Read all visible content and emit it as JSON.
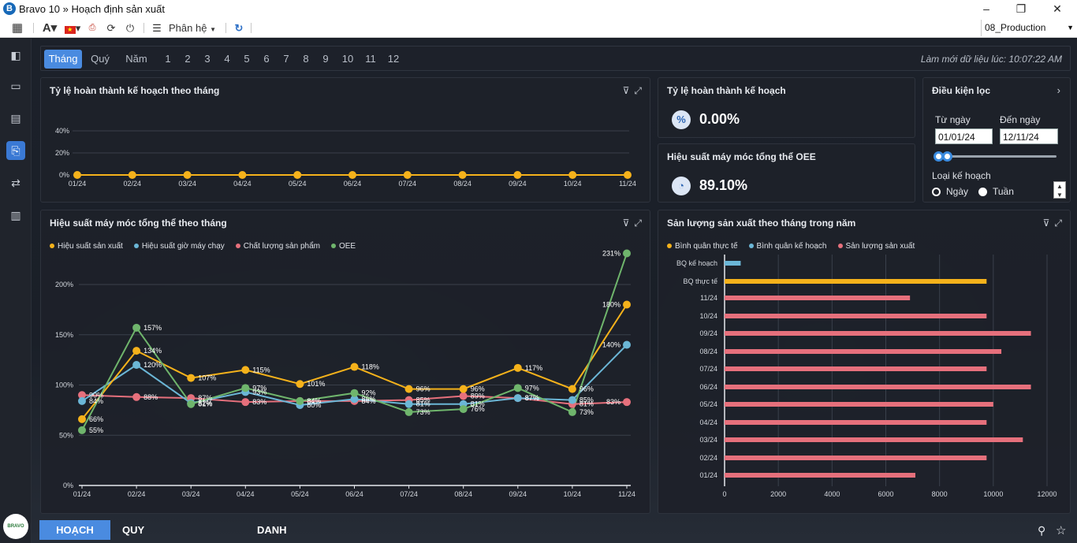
{
  "window": {
    "title": "Bravo 10 » Hoạch định sản xuất"
  },
  "toolbar": {
    "phan_he_label": "Phân hệ",
    "database": "08_Production"
  },
  "period_bar": {
    "tabs": [
      "Tháng",
      "Quý",
      "Năm"
    ],
    "months": [
      "1",
      "2",
      "3",
      "4",
      "5",
      "6",
      "7",
      "8",
      "9",
      "10",
      "11",
      "12"
    ],
    "refresh_text": "Làm mới dữ liệu lúc: 10:07:22 AM"
  },
  "panels": {
    "plan_rate_title": "Tỷ lệ hoàn thành kế hoạch theo tháng",
    "kpi_plan_title": "Tỷ lệ hoàn thành kế hoạch",
    "kpi_plan_value": "0.00%",
    "kpi_oee_title": "Hiệu suất máy móc tổng thể OEE",
    "kpi_oee_value": "89.10%",
    "oee_chart_title": "Hiệu suất máy móc tổng thể theo tháng",
    "output_chart_title": "Sản lượng sản xuất theo tháng trong năm"
  },
  "filter": {
    "title": "Điều kiện lọc",
    "from_label": "Từ ngày",
    "to_label": "Đến ngày",
    "from_value": "01/01/24",
    "to_value": "12/11/24",
    "plan_type_label": "Loại kế hoạch",
    "option_day": "Ngày",
    "option_week": "Tuần"
  },
  "bottom_tabs": [
    "HOẠCH ĐỊNH",
    "QUY TRÌNH HOẠCH ĐỊNH",
    "DANH SÁCH BÁO CÁO"
  ],
  "colors": {
    "accent": "#4a8be0",
    "orange": "#f5b21b",
    "blue": "#6bb6d6",
    "pink": "#e6707c",
    "green": "#6fb56c"
  },
  "chart_data": [
    {
      "type": "line",
      "x": [
        "01/24",
        "02/24",
        "03/24",
        "04/24",
        "05/24",
        "06/24",
        "07/24",
        "08/24",
        "09/24",
        "10/24",
        "11/24"
      ],
      "series": [
        {
          "values": [
            0,
            0,
            0,
            0,
            0,
            0,
            0,
            0,
            0,
            0,
            0
          ]
        }
      ],
      "yticks": [
        "0%",
        "20%",
        "40%"
      ],
      "ylim": [
        0,
        40
      ]
    },
    {
      "type": "line",
      "x": [
        "01/24",
        "02/24",
        "03/24",
        "04/24",
        "05/24",
        "06/24",
        "07/24",
        "08/24",
        "09/24",
        "10/24",
        "11/24"
      ],
      "yticks": [
        "0%",
        "50%",
        "100%",
        "150%",
        "200%"
      ],
      "ylim": [
        0,
        230
      ],
      "legend": "top-left",
      "series": [
        {
          "name": "Hiệu suất sản xuất",
          "color": "#f5b21b",
          "values": [
            66,
            134,
            107,
            115,
            101,
            118,
            96,
            96,
            117,
            96,
            180
          ],
          "labels": [
            "66%",
            "134%",
            "107%",
            "115%",
            "101%",
            "118%",
            "96%",
            "96%",
            "117%",
            "96%",
            "180%"
          ]
        },
        {
          "name": "Hiệu suất giờ máy chạy",
          "color": "#6bb6d6",
          "values": [
            84,
            120,
            82,
            93,
            80,
            86,
            81,
            81,
            87,
            85,
            140
          ],
          "labels": [
            "84%",
            "120%",
            "82%",
            "93%",
            "80%",
            "86%",
            "81%",
            "81%",
            "87%",
            "85%",
            "140%"
          ]
        },
        {
          "name": "Chất lượng sản phẩm",
          "color": "#e6707c",
          "values": [
            90,
            88,
            87,
            83,
            84,
            84,
            85,
            89,
            87,
            81,
            83
          ],
          "labels": [
            "90%",
            "88%",
            "87%",
            "83%",
            "84%",
            "84%",
            "85%",
            "89%",
            "87%",
            "81%",
            "83%"
          ]
        },
        {
          "name": "OEE",
          "color": "#6fb56c",
          "values": [
            55,
            157,
            81,
            97,
            84,
            92,
            73,
            76,
            97,
            73,
            231
          ],
          "labels": [
            "55%",
            "157%",
            "81%",
            "97%",
            "84%",
            "92%",
            "73%",
            "76%",
            "97%",
            "73%",
            "231%"
          ]
        }
      ]
    },
    {
      "type": "bar",
      "orientation": "horizontal",
      "categories": [
        "BQ kế hoạch",
        "BQ thực tế",
        "11/24",
        "10/24",
        "09/24",
        "08/24",
        "07/24",
        "06/24",
        "05/24",
        "04/24",
        "03/24",
        "02/24",
        "01/24"
      ],
      "values": [
        600,
        9750,
        6900,
        9750,
        11400,
        10300,
        9750,
        11400,
        10000,
        9750,
        11100,
        9750,
        7100
      ],
      "legend": "top-left",
      "series_names": [
        "Bình quân thực tế",
        "Bình quân kế hoạch",
        "Sản lượng sản xuất"
      ],
      "xticks": [
        "0",
        "2000",
        "4000",
        "6000",
        "8000",
        "10000",
        "12000"
      ],
      "xlim": [
        0,
        12000
      ]
    }
  ]
}
